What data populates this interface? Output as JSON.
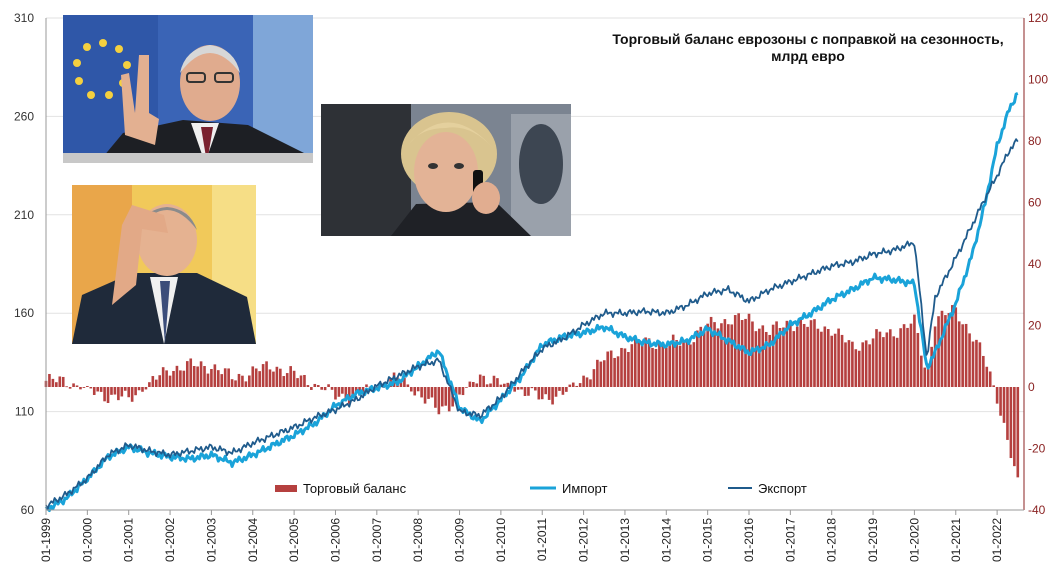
{
  "chart_data": {
    "type": "bar+line",
    "title": "Торговый баланс еврозоны с поправкой на сезонность, млрд евро",
    "title_lines": [
      "Торговый баланс еврозоны с поправкой на сезонность,",
      "млрд евро"
    ],
    "x_tick_labels": [
      "01-1999",
      "01-2000",
      "01-2001",
      "01-2002",
      "01-2003",
      "01-2004",
      "01-2005",
      "01-2006",
      "01-2007",
      "01-2008",
      "01-2009",
      "01-2010",
      "01-2011",
      "01-2012",
      "01-2013",
      "01-2014",
      "01-2015",
      "01-2016",
      "01-2017",
      "01-2018",
      "01-2019",
      "01-2020",
      "01-2021",
      "01-2022"
    ],
    "left_axis": {
      "min": 60,
      "max": 310,
      "ticks": [
        60,
        110,
        160,
        210,
        260,
        310
      ],
      "applies_to": [
        "Импорт",
        "Экспорт"
      ]
    },
    "right_axis": {
      "min": -40,
      "max": 120,
      "ticks": [
        -40,
        -20,
        0,
        20,
        40,
        60,
        80,
        100,
        120
      ],
      "applies_to": [
        "Торговый баланс"
      ]
    },
    "grid": true,
    "legend_position": "bottom-center",
    "series": [
      {
        "name": "Торговый баланс",
        "kind": "bar",
        "axis": "right",
        "color": "#b5403f",
        "points": [
          [
            1999,
            2
          ],
          [
            1999.5,
            2
          ],
          [
            2000,
            -1
          ],
          [
            2000.5,
            -3
          ],
          [
            2001,
            -4
          ],
          [
            2001.5,
            1
          ],
          [
            2002,
            6
          ],
          [
            2002.5,
            7
          ],
          [
            2003,
            7
          ],
          [
            2003.5,
            3
          ],
          [
            2004,
            5
          ],
          [
            2004.5,
            7
          ],
          [
            2005,
            4
          ],
          [
            2005.5,
            1
          ],
          [
            2006,
            -3
          ],
          [
            2006.5,
            -3
          ],
          [
            2007,
            0
          ],
          [
            2007.5,
            3
          ],
          [
            2008,
            -2
          ],
          [
            2008.5,
            -8
          ],
          [
            2009,
            -3
          ],
          [
            2009.5,
            4
          ],
          [
            2010,
            1
          ],
          [
            2010.5,
            -1
          ],
          [
            2011,
            -4
          ],
          [
            2011.5,
            -2
          ],
          [
            2012,
            3
          ],
          [
            2012.5,
            9
          ],
          [
            2013,
            13
          ],
          [
            2013.5,
            15
          ],
          [
            2014,
            14
          ],
          [
            2014.5,
            15
          ],
          [
            2015,
            20
          ],
          [
            2015.5,
            22
          ],
          [
            2016,
            22
          ],
          [
            2016.5,
            18
          ],
          [
            2017,
            21
          ],
          [
            2017.5,
            20
          ],
          [
            2018,
            19
          ],
          [
            2018.5,
            13
          ],
          [
            2019,
            16
          ],
          [
            2019.5,
            18
          ],
          [
            2020,
            21
          ],
          [
            2020.3,
            4
          ],
          [
            2020.5,
            22
          ],
          [
            2021,
            25
          ],
          [
            2021.4,
            17
          ],
          [
            2021.7,
            9
          ],
          [
            2022,
            -3
          ],
          [
            2022.3,
            -20
          ],
          [
            2022.5,
            -32
          ]
        ]
      },
      {
        "name": "Импорт",
        "kind": "line",
        "axis": "left",
        "color": "#1aa3d9",
        "points": [
          [
            1999,
            60
          ],
          [
            1999.5,
            66
          ],
          [
            2000,
            76
          ],
          [
            2000.5,
            87
          ],
          [
            2001,
            92
          ],
          [
            2001.5,
            89
          ],
          [
            2002,
            87
          ],
          [
            2002.5,
            86
          ],
          [
            2003,
            88
          ],
          [
            2003.5,
            84
          ],
          [
            2004,
            88
          ],
          [
            2004.5,
            93
          ],
          [
            2005,
            98
          ],
          [
            2005.5,
            104
          ],
          [
            2006,
            113
          ],
          [
            2006.5,
            119
          ],
          [
            2007,
            122
          ],
          [
            2007.5,
            125
          ],
          [
            2008,
            133
          ],
          [
            2008.5,
            141
          ],
          [
            2009,
            112
          ],
          [
            2009.5,
            105
          ],
          [
            2010,
            116
          ],
          [
            2010.5,
            128
          ],
          [
            2011,
            144
          ],
          [
            2011.5,
            148
          ],
          [
            2012,
            150
          ],
          [
            2012.5,
            153
          ],
          [
            2013,
            148
          ],
          [
            2013.5,
            145
          ],
          [
            2014,
            144
          ],
          [
            2014.5,
            146
          ],
          [
            2015,
            152
          ],
          [
            2015.5,
            146
          ],
          [
            2016,
            140
          ],
          [
            2016.5,
            144
          ],
          [
            2017,
            154
          ],
          [
            2017.5,
            160
          ],
          [
            2018,
            167
          ],
          [
            2018.5,
            172
          ],
          [
            2019,
            178
          ],
          [
            2019.5,
            177
          ],
          [
            2020,
            175
          ],
          [
            2020.3,
            132
          ],
          [
            2020.5,
            140
          ],
          [
            2021,
            165
          ],
          [
            2021.4,
            190
          ],
          [
            2021.7,
            215
          ],
          [
            2022,
            245
          ],
          [
            2022.3,
            264
          ],
          [
            2022.5,
            272
          ]
        ]
      },
      {
        "name": "Экспорт",
        "kind": "line",
        "axis": "left",
        "color": "#1f5b8c",
        "points": [
          [
            1999,
            62
          ],
          [
            1999.5,
            68
          ],
          [
            2000,
            76
          ],
          [
            2000.5,
            88
          ],
          [
            2001,
            93
          ],
          [
            2001.5,
            90
          ],
          [
            2002,
            88
          ],
          [
            2002.5,
            90
          ],
          [
            2003,
            92
          ],
          [
            2003.5,
            89
          ],
          [
            2004,
            94
          ],
          [
            2004.5,
            98
          ],
          [
            2005,
            102
          ],
          [
            2005.5,
            107
          ],
          [
            2006,
            111
          ],
          [
            2006.5,
            116
          ],
          [
            2007,
            123
          ],
          [
            2007.5,
            128
          ],
          [
            2008,
            133
          ],
          [
            2008.5,
            136
          ],
          [
            2009,
            110
          ],
          [
            2009.5,
            108
          ],
          [
            2010,
            117
          ],
          [
            2010.5,
            130
          ],
          [
            2011,
            142
          ],
          [
            2011.5,
            147
          ],
          [
            2012,
            154
          ],
          [
            2012.5,
            160
          ],
          [
            2013,
            160
          ],
          [
            2013.5,
            161
          ],
          [
            2014,
            160
          ],
          [
            2014.5,
            164
          ],
          [
            2015,
            170
          ],
          [
            2015.5,
            172
          ],
          [
            2016,
            166
          ],
          [
            2016.5,
            172
          ],
          [
            2017,
            176
          ],
          [
            2017.5,
            180
          ],
          [
            2018,
            184
          ],
          [
            2018.5,
            186
          ],
          [
            2019,
            190
          ],
          [
            2019.5,
            192
          ],
          [
            2020,
            196
          ],
          [
            2020.3,
            137
          ],
          [
            2020.5,
            168
          ],
          [
            2021,
            188
          ],
          [
            2021.4,
            205
          ],
          [
            2021.7,
            218
          ],
          [
            2022,
            230
          ],
          [
            2022.3,
            243
          ],
          [
            2022.5,
            248
          ]
        ]
      }
    ]
  },
  "photos": [
    "photo-borrell",
    "photo-von-der-leyen",
    "photo-scholz"
  ]
}
